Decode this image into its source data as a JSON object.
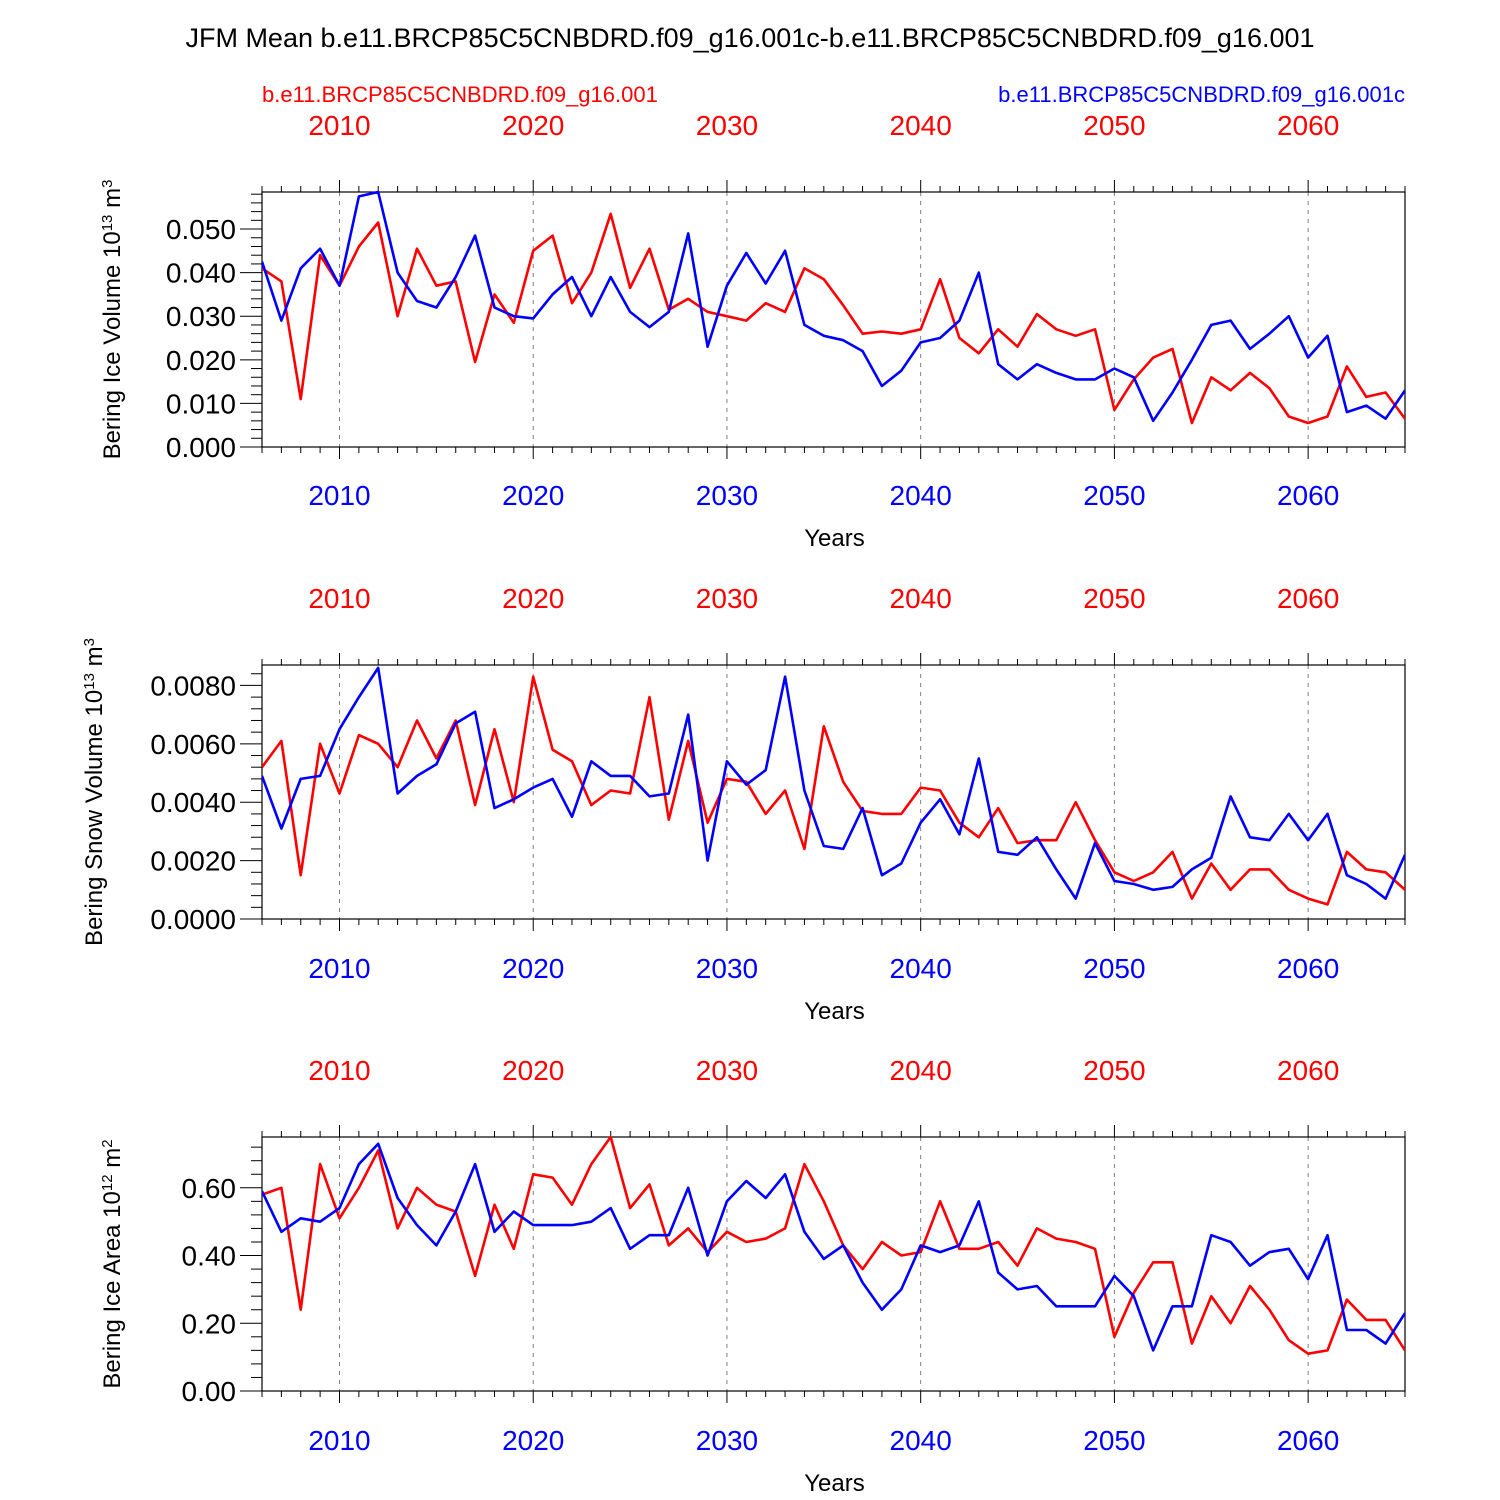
{
  "figure": {
    "title": "JFM Mean b.e11.BRCP85C5CNBDRD.f09_g16.001c-b.e11.BRCP85C5CNBDRD.f09_g16.001",
    "legend_left": "b.e11.BRCP85C5CNBDRD.f09_g16.001",
    "legend_right": "b.e11.BRCP85C5CNBDRD.f09_g16.001c"
  },
  "colors": {
    "red_series": "#ff0000",
    "blue_series": "#0000ff",
    "axis": "#000000",
    "grid": "#7f7f7f"
  },
  "chart_data": [
    {
      "type": "line",
      "ylabel": "Bering Ice Volume 10",
      "ylabel_exp": "13",
      "ylabel_unit": "m",
      "ylabel_unit_exp": "3",
      "xlabel": "Years",
      "x": [
        2006,
        2007,
        2008,
        2009,
        2010,
        2011,
        2012,
        2013,
        2014,
        2015,
        2016,
        2017,
        2018,
        2019,
        2020,
        2021,
        2022,
        2023,
        2024,
        2025,
        2026,
        2027,
        2028,
        2029,
        2030,
        2031,
        2032,
        2033,
        2034,
        2035,
        2036,
        2037,
        2038,
        2039,
        2040,
        2041,
        2042,
        2043,
        2044,
        2045,
        2046,
        2047,
        2048,
        2049,
        2050,
        2051,
        2052,
        2053,
        2054,
        2055,
        2056,
        2057,
        2058,
        2059,
        2060,
        2061,
        2062,
        2063,
        2064,
        2065
      ],
      "xlim": [
        2006,
        2065
      ],
      "xticks": [
        "2010",
        "2020",
        "2030",
        "2040",
        "2050",
        "2060"
      ],
      "ylim": [
        0,
        0.0585
      ],
      "yticks": [
        "0.000",
        "0.010",
        "0.020",
        "0.030",
        "0.040",
        "0.050"
      ],
      "series": [
        {
          "name": "b.e11.BRCP85C5CNBDRD.f09_g16.001",
          "color": "#ff0000",
          "values": [
            0.041,
            0.038,
            0.011,
            0.044,
            0.037,
            0.046,
            0.0515,
            0.03,
            0.0455,
            0.037,
            0.038,
            0.0195,
            0.035,
            0.0285,
            0.045,
            0.0485,
            0.033,
            0.04,
            0.0535,
            0.0365,
            0.0455,
            0.0315,
            0.034,
            0.031,
            0.03,
            0.029,
            0.033,
            0.031,
            0.041,
            0.0385,
            0.0325,
            0.026,
            0.0265,
            0.026,
            0.027,
            0.0385,
            0.025,
            0.0215,
            0.027,
            0.023,
            0.0305,
            0.027,
            0.0255,
            0.027,
            0.0085,
            0.0155,
            0.0205,
            0.0225,
            0.0055,
            0.016,
            0.013,
            0.017,
            0.0135,
            0.007,
            0.0055,
            0.007,
            0.0185,
            0.0115,
            0.0125,
            0.0065
          ]
        },
        {
          "name": "b.e11.BRCP85C5CNBDRD.f09_g16.001c",
          "color": "#0000ff",
          "values": [
            0.0425,
            0.029,
            0.041,
            0.0455,
            0.037,
            0.0575,
            0.0585,
            0.04,
            0.0335,
            0.032,
            0.039,
            0.0485,
            0.032,
            0.03,
            0.0295,
            0.035,
            0.039,
            0.03,
            0.039,
            0.031,
            0.0275,
            0.031,
            0.049,
            0.023,
            0.037,
            0.0445,
            0.0375,
            0.045,
            0.028,
            0.0255,
            0.0245,
            0.022,
            0.014,
            0.0175,
            0.024,
            0.025,
            0.029,
            0.04,
            0.019,
            0.0155,
            0.019,
            0.017,
            0.0155,
            0.0155,
            0.018,
            0.016,
            0.006,
            0.0125,
            0.02,
            0.028,
            0.029,
            0.0225,
            0.026,
            0.03,
            0.0205,
            0.0255,
            0.008,
            0.0095,
            0.0065,
            0.013
          ]
        }
      ]
    },
    {
      "type": "line",
      "ylabel": "Bering Snow Volume 10",
      "ylabel_exp": "13",
      "ylabel_unit": "m",
      "ylabel_unit_exp": "3",
      "xlabel": "Years",
      "x": [
        2006,
        2007,
        2008,
        2009,
        2010,
        2011,
        2012,
        2013,
        2014,
        2015,
        2016,
        2017,
        2018,
        2019,
        2020,
        2021,
        2022,
        2023,
        2024,
        2025,
        2026,
        2027,
        2028,
        2029,
        2030,
        2031,
        2032,
        2033,
        2034,
        2035,
        2036,
        2037,
        2038,
        2039,
        2040,
        2041,
        2042,
        2043,
        2044,
        2045,
        2046,
        2047,
        2048,
        2049,
        2050,
        2051,
        2052,
        2053,
        2054,
        2055,
        2056,
        2057,
        2058,
        2059,
        2060,
        2061,
        2062,
        2063,
        2064,
        2065
      ],
      "xlim": [
        2006,
        2065
      ],
      "xticks": [
        "2010",
        "2020",
        "2030",
        "2040",
        "2050",
        "2060"
      ],
      "ylim": [
        0,
        0.0087
      ],
      "yticks": [
        "0.0000",
        "0.0020",
        "0.0040",
        "0.0060",
        "0.0080"
      ],
      "series": [
        {
          "name": "b.e11.BRCP85C5CNBDRD.f09_g16.001",
          "color": "#ff0000",
          "values": [
            0.0052,
            0.0061,
            0.0015,
            0.006,
            0.0043,
            0.0063,
            0.006,
            0.0052,
            0.0068,
            0.0055,
            0.0068,
            0.0039,
            0.0065,
            0.004,
            0.0083,
            0.0058,
            0.0054,
            0.0039,
            0.0044,
            0.0043,
            0.0076,
            0.0034,
            0.0061,
            0.0033,
            0.0048,
            0.0047,
            0.0036,
            0.0044,
            0.0024,
            0.0066,
            0.0047,
            0.0037,
            0.0036,
            0.0036,
            0.0045,
            0.0044,
            0.0033,
            0.0028,
            0.0038,
            0.0026,
            0.0027,
            0.0027,
            0.004,
            0.0027,
            0.0016,
            0.0013,
            0.0016,
            0.0023,
            0.0007,
            0.0019,
            0.001,
            0.0017,
            0.0017,
            0.001,
            0.0007,
            0.0005,
            0.0023,
            0.0017,
            0.0016,
            0.001
          ]
        },
        {
          "name": "b.e11.BRCP85C5CNBDRD.f09_g16.001c",
          "color": "#0000ff",
          "values": [
            0.0049,
            0.0031,
            0.0048,
            0.0049,
            0.0065,
            0.0076,
            0.0086,
            0.0043,
            0.0049,
            0.0053,
            0.0067,
            0.0071,
            0.0038,
            0.0041,
            0.0045,
            0.0048,
            0.0035,
            0.0054,
            0.0049,
            0.0049,
            0.0042,
            0.0043,
            0.007,
            0.002,
            0.0054,
            0.0046,
            0.0051,
            0.0083,
            0.0044,
            0.0025,
            0.0024,
            0.0038,
            0.0015,
            0.0019,
            0.0033,
            0.0041,
            0.0029,
            0.0055,
            0.0023,
            0.0022,
            0.0028,
            0.0017,
            0.0007,
            0.0026,
            0.0013,
            0.0012,
            0.001,
            0.0011,
            0.0017,
            0.0021,
            0.0042,
            0.0028,
            0.0027,
            0.0036,
            0.0027,
            0.0036,
            0.0015,
            0.0012,
            0.0007,
            0.0022
          ]
        }
      ]
    },
    {
      "type": "line",
      "ylabel": "Bering Ice Area 10",
      "ylabel_exp": "12",
      "ylabel_unit": "m",
      "ylabel_unit_exp": "2",
      "xlabel": "Years",
      "x": [
        2006,
        2007,
        2008,
        2009,
        2010,
        2011,
        2012,
        2013,
        2014,
        2015,
        2016,
        2017,
        2018,
        2019,
        2020,
        2021,
        2022,
        2023,
        2024,
        2025,
        2026,
        2027,
        2028,
        2029,
        2030,
        2031,
        2032,
        2033,
        2034,
        2035,
        2036,
        2037,
        2038,
        2039,
        2040,
        2041,
        2042,
        2043,
        2044,
        2045,
        2046,
        2047,
        2048,
        2049,
        2050,
        2051,
        2052,
        2053,
        2054,
        2055,
        2056,
        2057,
        2058,
        2059,
        2060,
        2061,
        2062,
        2063,
        2064,
        2065
      ],
      "xlim": [
        2006,
        2065
      ],
      "xticks": [
        "2010",
        "2020",
        "2030",
        "2040",
        "2050",
        "2060"
      ],
      "ylim": [
        0,
        0.75
      ],
      "yticks": [
        "0.00",
        "0.20",
        "0.40",
        "0.60"
      ],
      "series": [
        {
          "name": "b.e11.BRCP85C5CNBDRD.f09_g16.001",
          "color": "#ff0000",
          "values": [
            0.58,
            0.6,
            0.24,
            0.67,
            0.51,
            0.6,
            0.71,
            0.48,
            0.6,
            0.55,
            0.53,
            0.34,
            0.55,
            0.42,
            0.64,
            0.63,
            0.55,
            0.67,
            0.75,
            0.54,
            0.61,
            0.43,
            0.48,
            0.41,
            0.47,
            0.44,
            0.45,
            0.48,
            0.67,
            0.56,
            0.43,
            0.36,
            0.44,
            0.4,
            0.41,
            0.56,
            0.42,
            0.42,
            0.44,
            0.37,
            0.48,
            0.45,
            0.44,
            0.42,
            0.16,
            0.29,
            0.38,
            0.38,
            0.14,
            0.28,
            0.2,
            0.31,
            0.24,
            0.15,
            0.11,
            0.12,
            0.27,
            0.21,
            0.21,
            0.12
          ]
        },
        {
          "name": "b.e11.BRCP85C5CNBDRD.f09_g16.001c",
          "color": "#0000ff",
          "values": [
            0.59,
            0.47,
            0.51,
            0.5,
            0.54,
            0.67,
            0.73,
            0.57,
            0.49,
            0.43,
            0.53,
            0.67,
            0.47,
            0.53,
            0.49,
            0.49,
            0.49,
            0.5,
            0.54,
            0.42,
            0.46,
            0.46,
            0.6,
            0.4,
            0.56,
            0.62,
            0.57,
            0.64,
            0.47,
            0.39,
            0.43,
            0.32,
            0.24,
            0.3,
            0.43,
            0.41,
            0.43,
            0.56,
            0.35,
            0.3,
            0.31,
            0.25,
            0.25,
            0.25,
            0.34,
            0.28,
            0.12,
            0.25,
            0.25,
            0.46,
            0.44,
            0.37,
            0.41,
            0.42,
            0.33,
            0.46,
            0.18,
            0.18,
            0.14,
            0.23
          ]
        }
      ]
    }
  ]
}
